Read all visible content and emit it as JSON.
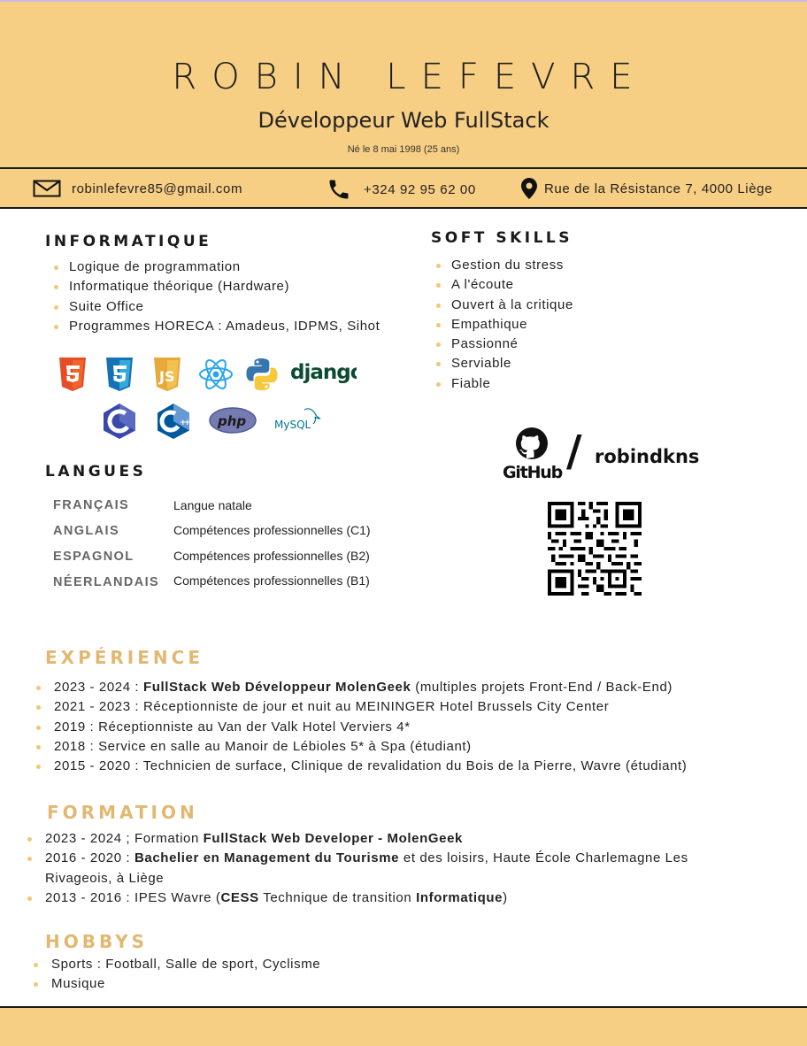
{
  "header": {
    "name": "ROBIN LEFEVRE",
    "job_title": "Développeur Web FullStack",
    "birth": "Né le 8 mai 1998 (25 ans)"
  },
  "contact": {
    "email": "robinlefevre85@gmail.com",
    "phone": "+324 92 95 62 00",
    "address": "Rue de la Résistance 7, 4000 Liège"
  },
  "informatique": {
    "title": "INFORMATIQUE",
    "items": [
      "Logique de programmation",
      "Informatique théorique (Hardware)",
      "Suite Office",
      "Programmes HORECA : Amadeus, IDPMS, Sihot"
    ],
    "tech_icons": [
      "html5-icon",
      "css3-icon",
      "javascript-icon",
      "react-icon",
      "python-icon",
      "django-logo",
      "c-icon",
      "cpp-icon",
      "php-icon",
      "mysql-icon"
    ],
    "django_label": "django",
    "php_label": "php",
    "mysql_label": "MySQL"
  },
  "soft_skills": {
    "title": "SOFT SKILLS",
    "items": [
      "Gestion du stress",
      "A l'écoute",
      "Ouvert à la critique",
      "Empathique",
      "Passionné",
      "Serviable",
      "Fiable"
    ]
  },
  "langues": {
    "title": "LANGUES",
    "rows": [
      {
        "name": "FRANÇAIS",
        "level": "Langue natale"
      },
      {
        "name": "ANGLAIS",
        "level": "Compétences professionnelles (C1)"
      },
      {
        "name": "ESPAGNOL",
        "level": "Compétences professionnelles (B2)"
      },
      {
        "name": "NÉERLANDAIS",
        "level": "Compétences professionnelles (B1)"
      }
    ]
  },
  "github": {
    "logo_text": "GitHub",
    "slash": "/",
    "username": "robindkns"
  },
  "experience": {
    "title": "EXPÉRIENCE",
    "items": [
      {
        "pre": "2023 - 2024 : ",
        "bold": "FullStack Web Développeur MolenGeek",
        "post": " (multiples projets Front-End / Back-End)"
      },
      {
        "pre": "2021 - 2023 : Réceptionniste de jour et nuit au MEININGER Hotel Brussels City Center",
        "bold": "",
        "post": ""
      },
      {
        "pre": "2019 : Réceptionniste au Van der Valk Hotel Verviers 4*",
        "bold": "",
        "post": ""
      },
      {
        "pre": "2018 : Service en salle au Manoir de Lébioles 5* à Spa (étudiant)",
        "bold": "",
        "post": ""
      },
      {
        "pre": "2015 - 2020 : Technicien de surface, Clinique de revalidation du Bois de la Pierre, Wavre (étudiant)",
        "bold": "",
        "post": ""
      }
    ]
  },
  "formation": {
    "title": "FORMATION",
    "items": [
      {
        "parts": [
          {
            "t": "2023 - 2024 ; Formation ",
            "b": false
          },
          {
            "t": "FullStack Web Developer - MolenGeek",
            "b": true
          }
        ]
      },
      {
        "parts": [
          {
            "t": "2016 - 2020 : ",
            "b": false
          },
          {
            "t": "Bachelier en Management du Tourisme",
            "b": true
          },
          {
            "t": " et des loisirs, Haute École Charlemagne Les Rivageois, à Liège",
            "b": false
          }
        ]
      },
      {
        "parts": [
          {
            "t": "2013 - 2016 : IPES Wavre (",
            "b": false
          },
          {
            "t": "CESS",
            "b": true
          },
          {
            "t": " Technique de transition ",
            "b": false
          },
          {
            "t": "Informatique",
            "b": true
          },
          {
            "t": ")",
            "b": false
          }
        ]
      }
    ]
  },
  "hobbys": {
    "title": "HOBBYS",
    "items": [
      "Sports : Football, Salle de sport, Cyclisme",
      "Musique"
    ]
  },
  "colors": {
    "accent": "#f7cf84",
    "section_gold": "#e2b871",
    "bullet": "#f2c676"
  }
}
